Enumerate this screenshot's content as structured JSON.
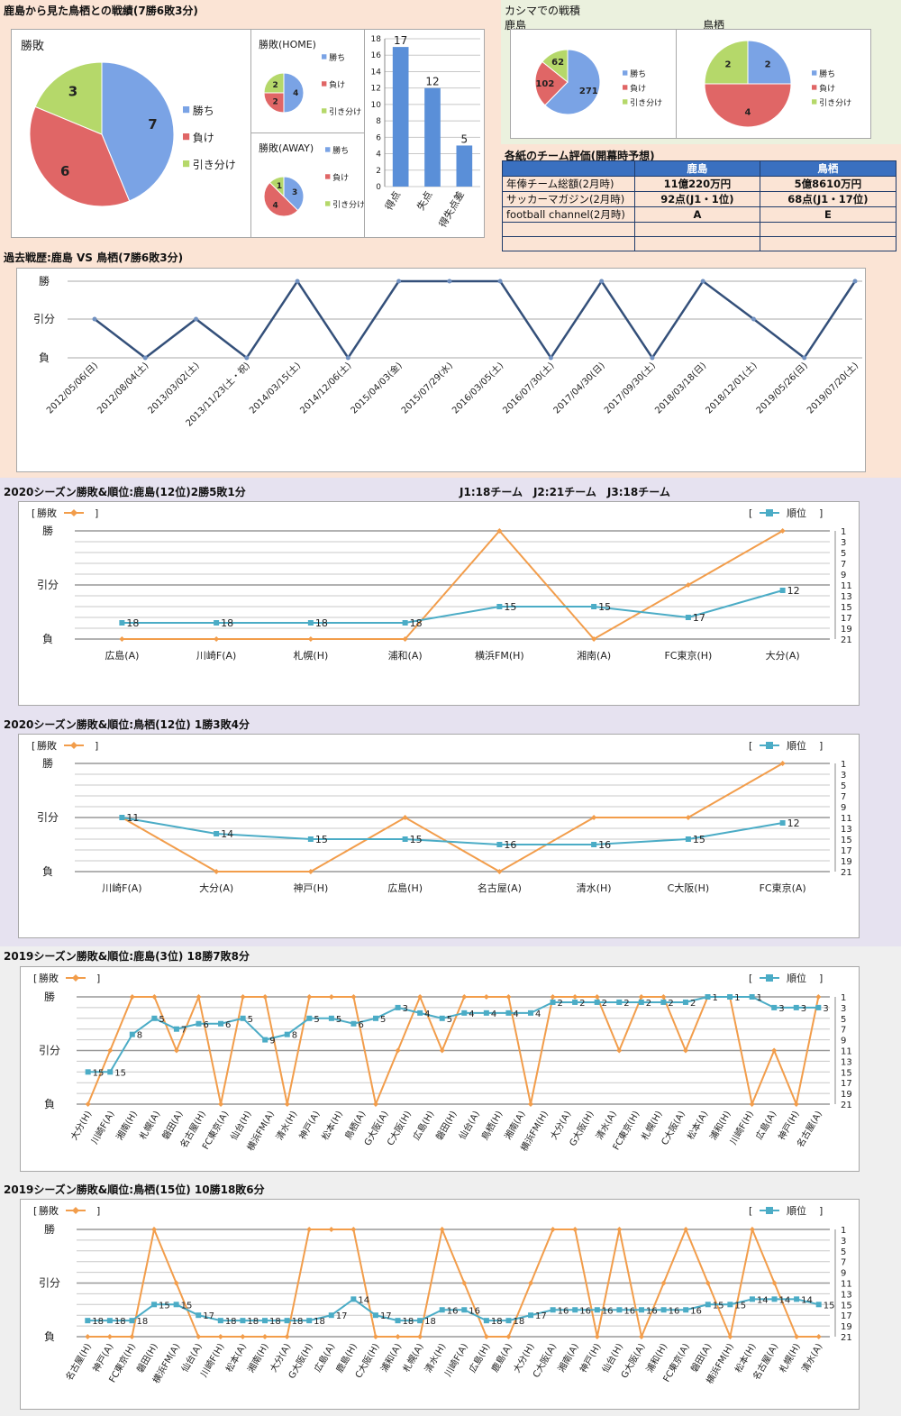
{
  "colors": {
    "win": "#7aa3e5",
    "loss": "#e06666",
    "draw": "#b5d86a",
    "orange": "#f29d4b",
    "teal": "#4bacc6",
    "navy": "#34507a",
    "peach": "#fbe4d5",
    "lavender": "#e6e2f0",
    "grey": "#efefef",
    "green": "#ebf1de"
  },
  "header": {
    "title": "鹿島から見た鳥栖との戦績(7勝6敗3分)",
    "pie_title": "勝敗",
    "home_title": "勝敗(HOME)",
    "away_title": "勝敗(AWAY)",
    "kashima_title": "カシマでの戦積",
    "kashima_label": "鹿島",
    "tosu_label": "鳥栖",
    "legend": [
      "勝ち",
      "負け",
      "引き分け"
    ]
  },
  "eval_table": {
    "title": "各紙のチーム評価(開幕時予想)",
    "headers": [
      "",
      "鹿島",
      "鳥栖"
    ],
    "rows": [
      [
        "年俸チーム総額(2月時)",
        "11億220万円",
        "5億8610万円"
      ],
      [
        "サッカーマガジン(2月時)",
        "92点(J1・1位)",
        "68点(J1・17位)"
      ],
      [
        "football channel(2月時)",
        "A",
        "E"
      ],
      [
        "",
        "",
        ""
      ],
      [
        "",
        "",
        ""
      ]
    ]
  },
  "history": {
    "title": "過去戦歴:鹿島 VS 鳥栖(7勝6敗3分)"
  },
  "season_2020_kashima": {
    "title": "2020シーズン勝敗&順位:鹿島(12位)2勝5敗1分",
    "note": "J1:18チーム　J2:21チーム　J3:18チーム"
  },
  "season_2020_tosu": {
    "title": "2020シーズン勝敗&順位:鳥栖(12位) 1勝3敗4分"
  },
  "season_2019_kashima": {
    "title": "2019シーズン勝敗&順位:鹿島(3位) 18勝7敗8分"
  },
  "season_2019_tosu": {
    "title": "2019シーズン勝敗&順位:鳥栖(15位) 10勝18敗6分"
  },
  "chart_labels": {
    "result_legend": "勝敗",
    "rank_legend": "順位",
    "win": "勝",
    "draw": "引分",
    "loss": "負",
    "rank_ticks": [
      1,
      3,
      5,
      7,
      9,
      11,
      13,
      15,
      17,
      19,
      21
    ]
  },
  "chart_data": [
    {
      "type": "pie",
      "id": "overall",
      "title": "勝敗",
      "labels": [
        "勝ち",
        "負け",
        "引き分け"
      ],
      "values": [
        7,
        6,
        3
      ]
    },
    {
      "type": "pie",
      "id": "home",
      "title": "勝敗(HOME)",
      "labels": [
        "勝ち",
        "負け",
        "引き分け"
      ],
      "values": [
        4,
        2,
        2
      ]
    },
    {
      "type": "pie",
      "id": "away",
      "title": "勝敗(AWAY)",
      "labels": [
        "勝ち",
        "負け",
        "引き分け"
      ],
      "values": [
        3,
        4,
        1
      ]
    },
    {
      "type": "bar",
      "id": "goals",
      "categories": [
        "得点",
        "失点",
        "得失点差"
      ],
      "values": [
        17,
        12,
        5
      ],
      "ylim": [
        0,
        18
      ],
      "yticks": [
        0,
        2,
        4,
        6,
        8,
        10,
        12,
        14,
        16,
        18
      ]
    },
    {
      "type": "pie",
      "id": "kashima_home",
      "title": "鹿島",
      "labels": [
        "勝ち",
        "負け",
        "引き分け"
      ],
      "values": [
        271,
        102,
        62
      ]
    },
    {
      "type": "pie",
      "id": "kashima_tosu",
      "title": "鳥栖",
      "labels": [
        "勝ち",
        "負け",
        "引き分け"
      ],
      "values": [
        2,
        4,
        2
      ]
    },
    {
      "type": "line",
      "id": "history",
      "title": "過去戦歴:鹿島 VS 鳥栖(7勝6敗3分)",
      "categories": [
        "2012/05/06(日)",
        "2012/08/04(土)",
        "2013/03/02(土)",
        "2013/11/23(土・祝)",
        "2014/03/15(土)",
        "2014/12/06(土)",
        "2015/04/03(金)",
        "2015/07/29(水)",
        "2016/03/05(土)",
        "2016/07/30(土)",
        "2017/04/30(日)",
        "2017/09/30(土)",
        "2018/03/18(日)",
        "2018/12/01(土)",
        "2019/05/26(日)",
        "2019/07/20(土)"
      ],
      "results": [
        "D",
        "L",
        "D",
        "L",
        "W",
        "L",
        "W",
        "W",
        "W",
        "L",
        "W",
        "L",
        "W",
        "D",
        "L",
        "W"
      ]
    },
    {
      "type": "line",
      "id": "k2020",
      "title": "2020シーズン勝敗&順位:鹿島(12位)2勝5敗1分",
      "categories": [
        "広島(A)",
        "川崎F(A)",
        "札幌(H)",
        "浦和(A)",
        "横浜FM(H)",
        "湘南(A)",
        "FC東京(H)",
        "大分(A)"
      ],
      "results": [
        "L",
        "L",
        "L",
        "L",
        "W",
        "L",
        "D",
        "W"
      ],
      "ranks": [
        18,
        18,
        18,
        18,
        15,
        15,
        17,
        12
      ],
      "label_every": 1
    },
    {
      "type": "line",
      "id": "t2020",
      "title": "2020シーズン勝敗&順位:鳥栖(12位) 1勝3敗4分",
      "categories": [
        "川崎F(A)",
        "大分(A)",
        "神戸(H)",
        "広島(H)",
        "名古屋(A)",
        "清水(H)",
        "C大阪(H)",
        "FC東京(A)"
      ],
      "results": [
        "D",
        "L",
        "L",
        "D",
        "L",
        "D",
        "D",
        "W"
      ],
      "ranks": [
        11,
        14,
        15,
        15,
        16,
        16,
        15,
        12
      ],
      "label_every": 1
    },
    {
      "type": "line",
      "id": "k2019",
      "title": "2019シーズン勝敗&順位:鹿島(3位) 18勝7敗8分",
      "categories": [
        "大分(H)",
        "川崎F(A)",
        "湘南(H)",
        "札幌(A)",
        "磐田(A)",
        "名古屋(H)",
        "FC東京(A)",
        "仙台(H)",
        "横浜FM(A)",
        "清水(H)",
        "神戸(A)",
        "松本(H)",
        "鳥栖(A)",
        "G大阪(A)",
        "C大阪(H)",
        "広島(H)",
        "磐田(H)",
        "仙台(A)",
        "鳥栖(H)",
        "湘南(A)",
        "横浜FM(H)",
        "大分(A)",
        "G大阪(H)",
        "清水(A)",
        "FC東京(H)",
        "札幌(H)",
        "C大阪(A)",
        "松本(A)",
        "浦和(H)",
        "川崎F(H)",
        "広島(A)",
        "神戸(H)",
        "名古屋(A)"
      ],
      "results": [
        "L",
        "D",
        "W",
        "W",
        "D",
        "W",
        "L",
        "W",
        "W",
        "L",
        "W",
        "W",
        "W",
        "L",
        "D",
        "W",
        "D",
        "W",
        "W",
        "W",
        "L",
        "W",
        "W",
        "W",
        "D",
        "W",
        "W",
        "D",
        "W",
        "W",
        "L",
        "D",
        "L",
        "W"
      ],
      "ranks": [
        15,
        15,
        8,
        5,
        7,
        6,
        6,
        5,
        9,
        8,
        5,
        5,
        6,
        5,
        3,
        4,
        5,
        4,
        4,
        4,
        4,
        2,
        2,
        2,
        2,
        2,
        2,
        2,
        1,
        1,
        1,
        3,
        3,
        3
      ],
      "label_every": 1
    },
    {
      "type": "line",
      "id": "t2019",
      "title": "2019シーズン勝敗&順位:鳥栖(15位) 10勝18敗6分",
      "categories": [
        "名古屋(H)",
        "神戸(A)",
        "FC東京(H)",
        "磐田(H)",
        "横浜FM(A)",
        "仙台(A)",
        "川崎F(H)",
        "松本(A)",
        "湘南(H)",
        "大分(A)",
        "G大阪(H)",
        "広島(A)",
        "鹿島(H)",
        "C大阪(H)",
        "浦和(A)",
        "札幌(A)",
        "清水(H)",
        "川崎F(A)",
        "広島(H)",
        "鹿島(A)",
        "大分(H)",
        "C大阪(A)",
        "湘南(A)",
        "神戸(H)",
        "仙台(H)",
        "G大阪(A)",
        "浦和(H)",
        "FC東京(A)",
        "磐田(A)",
        "横浜FM(H)",
        "松本(H)",
        "名古屋(A)",
        "札幌(H)",
        "清水(A)"
      ],
      "results": [
        "L",
        "L",
        "L",
        "W",
        "D",
        "L",
        "L",
        "L",
        "L",
        "L",
        "W",
        "W",
        "W",
        "L",
        "L",
        "L",
        "W",
        "D",
        "L",
        "L",
        "D",
        "W",
        "W",
        "L",
        "W",
        "L",
        "D",
        "W",
        "D",
        "L",
        "W",
        "D",
        "L",
        "L"
      ],
      "ranks": [
        18,
        18,
        18,
        15,
        15,
        17,
        18,
        18,
        18,
        18,
        18,
        17,
        14,
        17,
        18,
        18,
        16,
        16,
        18,
        18,
        17,
        16,
        16,
        16,
        16,
        16,
        16,
        16,
        15,
        15,
        14,
        14,
        14,
        15
      ],
      "label_every": 1
    }
  ]
}
